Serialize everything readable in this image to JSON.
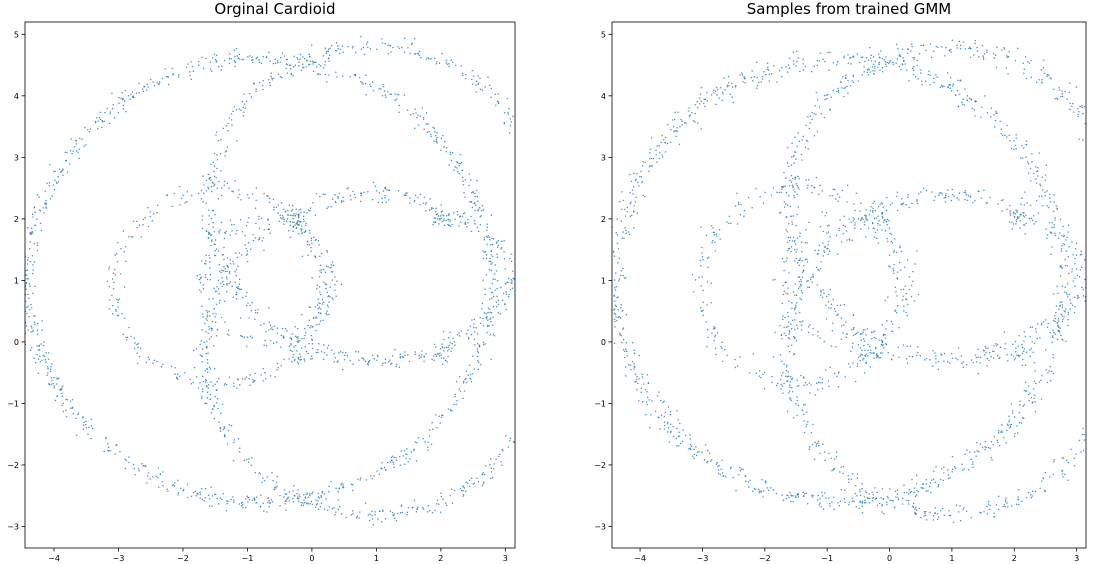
{
  "chart_data": [
    {
      "type": "scatter",
      "title": "Orginal Cardioid",
      "xlabel": "",
      "ylabel": "",
      "xlim": [
        -4.45,
        3.15
      ],
      "ylim": [
        -3.35,
        5.2
      ],
      "xticks": [
        -4,
        -3,
        -2,
        -1,
        0,
        1,
        2,
        3
      ],
      "yticks": [
        -3,
        -2,
        -1,
        0,
        1,
        2,
        3,
        4,
        5
      ],
      "xtick_labels": [
        "−4",
        "−3",
        "−2",
        "−1",
        "0",
        "1",
        "2",
        "3"
      ],
      "ytick_labels": [
        "−3",
        "−2",
        "−1",
        "0",
        "1",
        "2",
        "3",
        "4",
        "5"
      ],
      "grid": false,
      "point_color": "#1f77b4",
      "series": [
        {
          "description_free": true,
          "components": [
            {
              "kind": "circle",
              "cx": -0.8,
              "cy": 1.0,
              "r": 3.6,
              "noise": 0.07,
              "weight": 0.36
            },
            {
              "kind": "circle",
              "cx": 0.95,
              "cy": 2.25,
              "r": 2.55,
              "noise": 0.07,
              "weight": 0.22
            },
            {
              "kind": "circle",
              "cx": 0.95,
              "cy": -0.2,
              "r": 2.6,
              "noise": 0.07,
              "weight": 0.22
            },
            {
              "kind": "circle",
              "cx": -1.45,
              "cy": 0.9,
              "r": 1.6,
              "noise": 0.07,
              "weight": 0.1
            },
            {
              "kind": "circle",
              "cx": -0.7,
              "cy": 1.0,
              "r": 1.0,
              "noise": 0.07,
              "weight": 0.06
            },
            {
              "kind": "cluster",
              "cx": -0.2,
              "cy": 2.0,
              "sd": 0.09,
              "weight": 0.01
            },
            {
              "kind": "cluster",
              "cx": 2.05,
              "cy": 2.0,
              "sd": 0.09,
              "weight": 0.01
            },
            {
              "kind": "cluster",
              "cx": -0.2,
              "cy": -0.2,
              "sd": 0.09,
              "weight": 0.01
            },
            {
              "kind": "cluster",
              "cx": 2.05,
              "cy": -0.2,
              "sd": 0.09,
              "weight": 0.01
            }
          ]
        }
      ]
    },
    {
      "type": "scatter",
      "title": "Samples from trained GMM",
      "xlabel": "",
      "ylabel": "",
      "xlim": [
        -4.45,
        3.15
      ],
      "ylim": [
        -3.35,
        5.2
      ],
      "xticks": [
        -4,
        -3,
        -2,
        -1,
        0,
        1,
        2,
        3
      ],
      "yticks": [
        -3,
        -2,
        -1,
        0,
        1,
        2,
        3,
        4,
        5
      ],
      "xtick_labels": [
        "−4",
        "−3",
        "−2",
        "−1",
        "0",
        "1",
        "2",
        "3"
      ],
      "ytick_labels": [
        "−3",
        "−2",
        "−1",
        "0",
        "1",
        "2",
        "3",
        "4",
        "5"
      ],
      "grid": false,
      "point_color": "#1f77b4",
      "series": [
        {
          "description_free": true,
          "components": [
            {
              "kind": "circle",
              "cx": -0.8,
              "cy": 1.0,
              "r": 3.6,
              "noise": 0.09,
              "weight": 0.36
            },
            {
              "kind": "circle",
              "cx": 0.95,
              "cy": 2.25,
              "r": 2.55,
              "noise": 0.09,
              "weight": 0.22
            },
            {
              "kind": "circle",
              "cx": 0.95,
              "cy": -0.2,
              "r": 2.6,
              "noise": 0.09,
              "weight": 0.22
            },
            {
              "kind": "circle",
              "cx": -1.45,
              "cy": 0.9,
              "r": 1.6,
              "noise": 0.09,
              "weight": 0.1
            },
            {
              "kind": "circle",
              "cx": -0.7,
              "cy": 1.0,
              "r": 1.0,
              "noise": 0.09,
              "weight": 0.06
            },
            {
              "kind": "cluster",
              "cx": -0.2,
              "cy": 2.0,
              "sd": 0.1,
              "weight": 0.01
            },
            {
              "kind": "cluster",
              "cx": 2.05,
              "cy": 2.0,
              "sd": 0.1,
              "weight": 0.01
            },
            {
              "kind": "cluster",
              "cx": -0.2,
              "cy": -0.2,
              "sd": 0.1,
              "weight": 0.01
            },
            {
              "kind": "cluster",
              "cx": 2.05,
              "cy": -0.2,
              "sd": 0.1,
              "weight": 0.01
            }
          ]
        }
      ]
    }
  ]
}
